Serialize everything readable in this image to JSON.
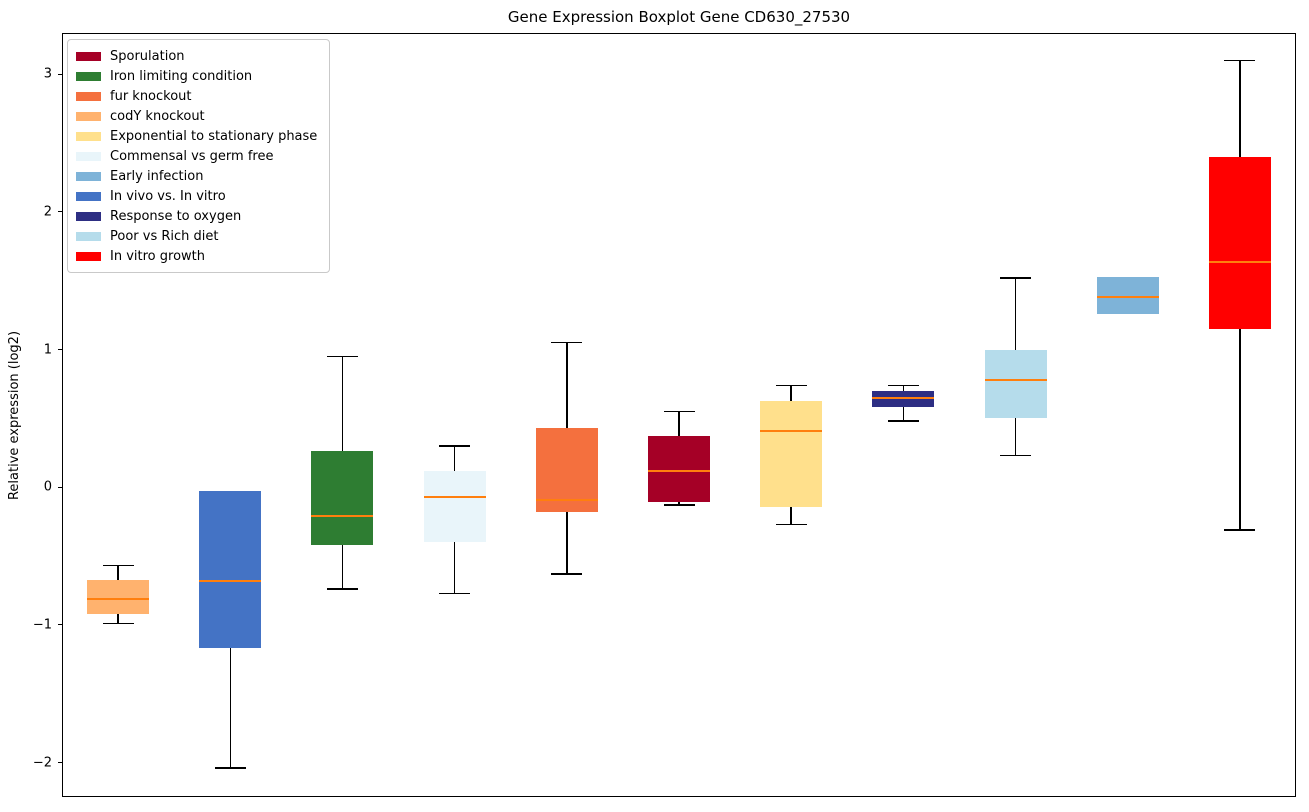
{
  "chart_data": {
    "type": "boxplot",
    "title": "Gene Expression Boxplot Gene CD630_27530",
    "xlabel": "",
    "ylabel": "Relative expression (log2)",
    "ylim": [
      -2.25,
      3.3
    ],
    "yticks": [
      -2,
      -1,
      0,
      1,
      2,
      3
    ],
    "grid": false,
    "median_color": "#FF7F0E",
    "whisker_color": "#000000",
    "legend": {
      "position": "upper-left",
      "entries": [
        {
          "label": "Sporulation",
          "color": "#A50026"
        },
        {
          "label": "Iron limiting condition",
          "color": "#2E7D32"
        },
        {
          "label": "fur knockout",
          "color": "#F4703E"
        },
        {
          "label": "codY knockout",
          "color": "#FFB26E"
        },
        {
          "label": "Exponential to stationary phase",
          "color": "#FFE08C"
        },
        {
          "label": "Commensal vs germ free",
          "color": "#E9F5FA"
        },
        {
          "label": "Early infection",
          "color": "#7EB3D8"
        },
        {
          "label": "In vivo vs. In vitro",
          "color": "#4473C5"
        },
        {
          "label": "Response to oxygen",
          "color": "#2D2E83"
        },
        {
          "label": "Poor vs Rich diet",
          "color": "#B5DCEB"
        },
        {
          "label": "In vitro growth",
          "color": "#FF0000"
        }
      ]
    },
    "series": [
      {
        "name": "codY knockout",
        "color": "#FFB26E",
        "whislo": -0.99,
        "q1": -0.92,
        "med": -0.81,
        "q3": -0.67,
        "whishi": -0.57
      },
      {
        "name": "In vivo vs. In vitro",
        "color": "#4473C5",
        "whislo": -2.04,
        "q1": -1.17,
        "med": -0.68,
        "q3": -0.03,
        "whishi": -0.03
      },
      {
        "name": "Iron limiting condition",
        "color": "#2E7D32",
        "whislo": -0.74,
        "q1": -0.42,
        "med": -0.21,
        "q3": 0.26,
        "whishi": 0.95
      },
      {
        "name": "Commensal vs germ free",
        "color": "#E9F5FA",
        "whislo": -0.77,
        "q1": -0.4,
        "med": -0.07,
        "q3": 0.12,
        "whishi": 0.3
      },
      {
        "name": "fur knockout",
        "color": "#F4703E",
        "whislo": -0.63,
        "q1": -0.18,
        "med": -0.09,
        "q3": 0.43,
        "whishi": 1.05
      },
      {
        "name": "Sporulation",
        "color": "#A50026",
        "whislo": -0.13,
        "q1": -0.11,
        "med": 0.12,
        "q3": 0.37,
        "whishi": 0.55
      },
      {
        "name": "Exponential to stationary phase",
        "color": "#FFE08C",
        "whislo": -0.27,
        "q1": -0.14,
        "med": 0.41,
        "q3": 0.63,
        "whishi": 0.74
      },
      {
        "name": "Response to oxygen",
        "color": "#2D2E83",
        "whislo": 0.48,
        "q1": 0.58,
        "med": 0.65,
        "q3": 0.7,
        "whishi": 0.74
      },
      {
        "name": "Poor vs Rich diet",
        "color": "#B5DCEB",
        "whislo": 0.23,
        "q1": 0.5,
        "med": 0.78,
        "q3": 1.0,
        "whishi": 1.52
      },
      {
        "name": "Early infection",
        "color": "#7EB3D8",
        "whislo": 1.26,
        "q1": 1.26,
        "med": 1.38,
        "q3": 1.53,
        "whishi": 1.53
      },
      {
        "name": "In vitro growth",
        "color": "#FF0000",
        "whislo": -0.31,
        "q1": 1.15,
        "med": 1.64,
        "q3": 2.4,
        "whishi": 3.1
      }
    ]
  }
}
